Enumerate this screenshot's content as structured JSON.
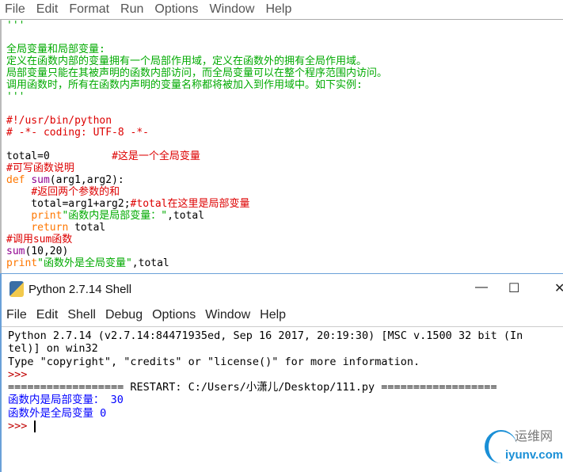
{
  "colors": {
    "comment": "#dd0000",
    "string": "#00aa00",
    "keyword": "#ff7700",
    "builtin": "#900090",
    "normal": "#000000",
    "output": "#0000ff",
    "prompt": "#c00000"
  },
  "editor": {
    "menu": [
      "File",
      "Edit",
      "Format",
      "Run",
      "Options",
      "Window",
      "Help"
    ],
    "lines": [
      [
        [
          "string",
          "'''"
        ]
      ],
      [
        [
          "string",
          ""
        ]
      ],
      [
        [
          "string",
          "全局变量和局部变量:"
        ]
      ],
      [
        [
          "string",
          "定义在函数内部的变量拥有一个局部作用域，定义在函数外的拥有全局作用域。"
        ]
      ],
      [
        [
          "string",
          "局部变量只能在其被声明的函数内部访问，而全局变量可以在整个程序范围内访问。"
        ]
      ],
      [
        [
          "string",
          "调用函数时，所有在函数内声明的变量名称都将被加入到作用域中。如下实例:"
        ]
      ],
      [
        [
          "string",
          "'''"
        ]
      ],
      [
        [
          "normal",
          ""
        ]
      ],
      [
        [
          "comment",
          "#!/usr/bin/python"
        ]
      ],
      [
        [
          "comment",
          "# -*- coding: UTF-8 -*-"
        ]
      ],
      [
        [
          "normal",
          ""
        ]
      ],
      [
        [
          "normal",
          "total=0          "
        ],
        [
          "comment",
          "#这是一个全局变量"
        ]
      ],
      [
        [
          "comment",
          "#可写函数说明"
        ]
      ],
      [
        [
          "keyword",
          "def "
        ],
        [
          "builtin",
          "sum"
        ],
        [
          "normal",
          "(arg1,arg2):"
        ]
      ],
      [
        [
          "normal",
          "    "
        ],
        [
          "comment",
          "#返回两个参数的和"
        ]
      ],
      [
        [
          "normal",
          "    total=arg1+arg2;"
        ],
        [
          "comment",
          "#total在这里是局部变量"
        ]
      ],
      [
        [
          "normal",
          "    "
        ],
        [
          "keyword",
          "print"
        ],
        [
          "string",
          "\"函数内是局部变量：\""
        ],
        [
          "normal",
          ",total"
        ]
      ],
      [
        [
          "normal",
          "    "
        ],
        [
          "keyword",
          "return"
        ],
        [
          "normal",
          " total"
        ]
      ],
      [
        [
          "comment",
          "#调用sum函数"
        ]
      ],
      [
        [
          "builtin",
          "sum"
        ],
        [
          "normal",
          "(10,20)"
        ]
      ],
      [
        [
          "keyword",
          "print"
        ],
        [
          "string",
          "\"函数外是全局变量\""
        ],
        [
          "normal",
          ",total"
        ]
      ]
    ]
  },
  "shell": {
    "title": "Python 2.7.14 Shell",
    "controls": {
      "minimize": "—",
      "maximize": "☐",
      "close": "✕"
    },
    "menu": [
      "File",
      "Edit",
      "Shell",
      "Debug",
      "Options",
      "Window",
      "Help"
    ],
    "lines": [
      [
        [
          "normal",
          "Python 2.7.14 (v2.7.14:84471935ed, Sep 16 2017, 20:19:30) [MSC v.1500 32 bit (In"
        ]
      ],
      [
        [
          "normal",
          "tel)] on win32"
        ]
      ],
      [
        [
          "normal",
          "Type \"copyright\", \"credits\" or \"license()\" for more information."
        ]
      ],
      [
        [
          "prompt",
          ">>>"
        ]
      ],
      [
        [
          "normal",
          "================== RESTART: C:/Users/小潇儿/Desktop/111.py =================="
        ]
      ],
      [
        [
          "output",
          "函数内是局部变量： 30"
        ]
      ],
      [
        [
          "output",
          "函数外是全局变量 0"
        ]
      ],
      [
        [
          "prompt",
          ">>> "
        ]
      ]
    ]
  },
  "watermark": {
    "cn": "运维网",
    "en": "iyunv.com"
  }
}
